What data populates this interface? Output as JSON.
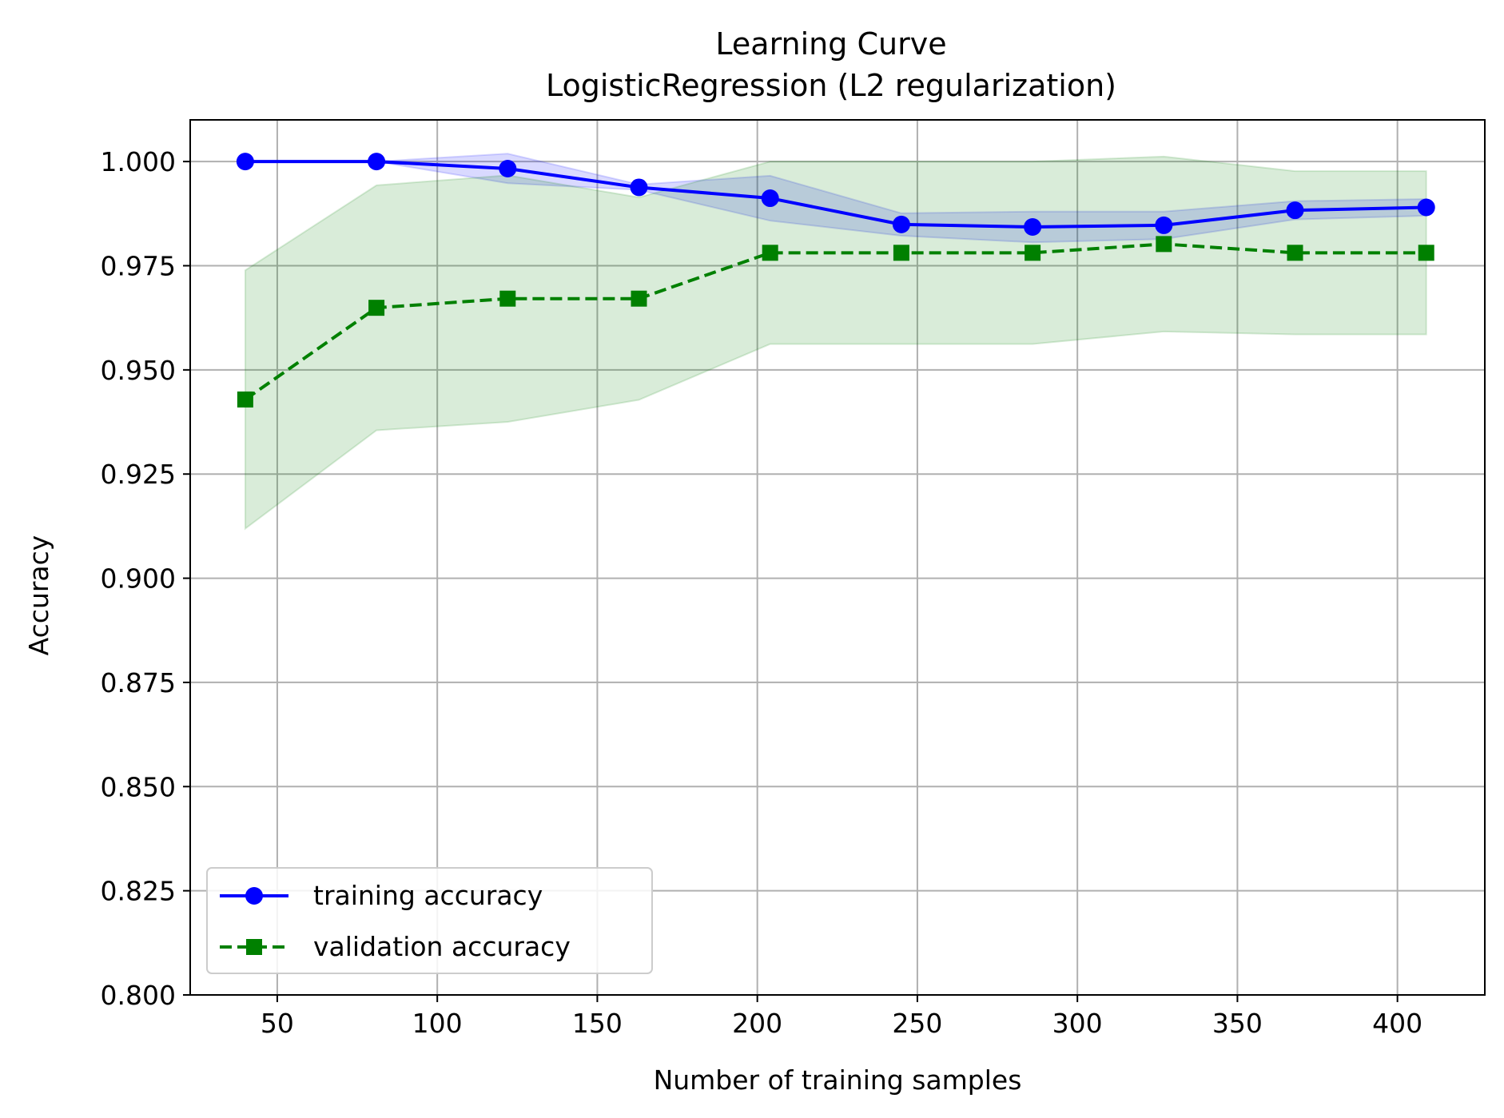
{
  "chart_data": {
    "type": "line",
    "title": "Learning Curve",
    "subtitle": "LogisticRegression (L2 regularization)",
    "xlabel": "Number of training samples",
    "ylabel": "Accuracy",
    "xlim": [
      22.8,
      427.3
    ],
    "ylim": [
      0.8,
      1.01
    ],
    "xticks": [
      50,
      100,
      150,
      200,
      250,
      300,
      350,
      400
    ],
    "xtick_labels": [
      "50",
      "100",
      "150",
      "200",
      "250",
      "300",
      "350",
      "400"
    ],
    "yticks": [
      0.8,
      0.825,
      0.85,
      0.875,
      0.9,
      0.925,
      0.95,
      0.975,
      1.0
    ],
    "ytick_labels": [
      "0.800",
      "0.825",
      "0.850",
      "0.875",
      "0.900",
      "0.925",
      "0.950",
      "0.975",
      "1.000"
    ],
    "grid": true,
    "legend_position": "lower-left",
    "x": [
      40,
      81,
      122,
      163,
      204,
      245,
      286,
      327,
      368,
      409
    ],
    "series": [
      {
        "name": "training accuracy",
        "color": "#0000ff",
        "line_style": "solid",
        "marker": "circle",
        "values": [
          1.0,
          1.0,
          0.9983,
          0.9938,
          0.9912,
          0.9849,
          0.9843,
          0.9847,
          0.9883,
          0.989
        ],
        "band_upper": [
          1.0,
          1.0,
          1.0019,
          0.9945,
          0.9966,
          0.9876,
          0.988,
          0.988,
          0.9905,
          0.991
        ],
        "band_lower": [
          1.0,
          1.0,
          0.9948,
          0.9932,
          0.9858,
          0.9822,
          0.9806,
          0.9814,
          0.9861,
          0.987
        ],
        "band_color": "#0000ff"
      },
      {
        "name": "validation accuracy",
        "color": "#008000",
        "line_style": "dashed",
        "marker": "square",
        "values": [
          0.9429,
          0.9649,
          0.9671,
          0.9671,
          0.9781,
          0.9781,
          0.9781,
          0.9802,
          0.9781,
          0.9781
        ],
        "band_upper": [
          0.9739,
          0.9943,
          0.9967,
          0.9914,
          1.0,
          1.0,
          1.0,
          1.0012,
          0.9977,
          0.9977
        ],
        "band_lower": [
          0.9119,
          0.9355,
          0.9375,
          0.9428,
          0.9562,
          0.9562,
          0.9562,
          0.9592,
          0.9585,
          0.9585
        ],
        "band_color": "#008000"
      }
    ]
  }
}
